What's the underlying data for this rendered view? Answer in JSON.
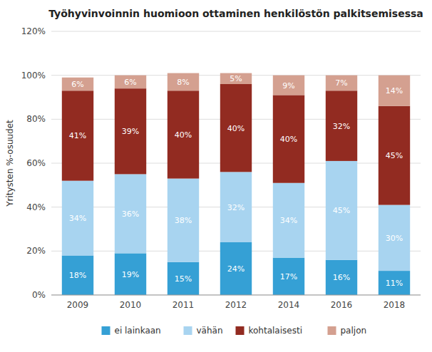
{
  "chart_data": {
    "type": "bar",
    "stacked": true,
    "title": "Työhyvinvoinnin huomioon ottaminen henkilöstön palkitsemisessa",
    "ylabel": "Yritysten %-osuudet",
    "categories": [
      "2009",
      "2010",
      "2011",
      "2012",
      "2014",
      "2016",
      "2018"
    ],
    "series": [
      {
        "name": "ei lainkaan",
        "color": "#35a0d5",
        "values": [
          18,
          19,
          15,
          24,
          17,
          16,
          11
        ],
        "value_labels": [
          "18%",
          "19%",
          "15%",
          "24%",
          "17%",
          "16%",
          "11%"
        ]
      },
      {
        "name": "vähän",
        "color": "#a8d4f0",
        "values": [
          34,
          36,
          38,
          32,
          34,
          45,
          30
        ],
        "value_labels": [
          "34%",
          "36%",
          "38%",
          "32%",
          "34%",
          "45%",
          "30%"
        ]
      },
      {
        "name": "kohtalaisesti",
        "color": "#922b21",
        "values": [
          41,
          39,
          40,
          40,
          40,
          32,
          45
        ],
        "value_labels": [
          "41%",
          "39%",
          "40%",
          "40%",
          "40%",
          "32%",
          "45%"
        ]
      },
      {
        "name": "paljon",
        "color": "#d4a090",
        "values": [
          6,
          6,
          8,
          5,
          9,
          7,
          14
        ],
        "value_labels": [
          "6%",
          "6%",
          "8%",
          "5%",
          "9%",
          "7%",
          "14%"
        ]
      }
    ],
    "ylim": [
      0,
      120
    ],
    "yticks": [
      {
        "value": 0,
        "label": "0%"
      },
      {
        "value": 20,
        "label": "20%"
      },
      {
        "value": 40,
        "label": "40%"
      },
      {
        "value": 60,
        "label": "60%"
      },
      {
        "value": 80,
        "label": "80%"
      },
      {
        "value": 100,
        "label": "100%"
      },
      {
        "value": 120,
        "label": "120%"
      }
    ],
    "grid": true,
    "data_labels": true,
    "legend": "bottom"
  }
}
